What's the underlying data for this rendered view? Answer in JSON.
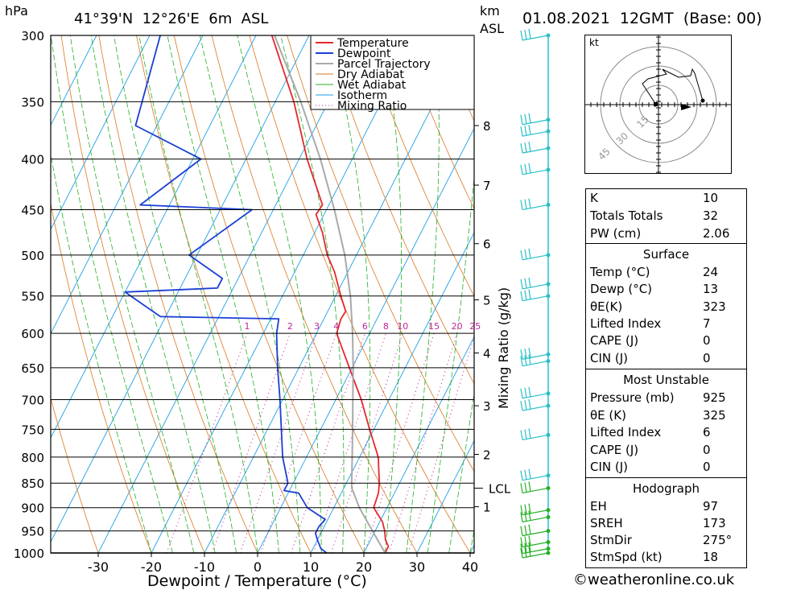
{
  "header": {
    "pressure_unit": "hPa",
    "location": "41°39'N  12°26'E  6m  ASL",
    "height_unit": "km",
    "height_unit2": "ASL",
    "datetime": "01.08.2021  12GMT  (Base: 00)"
  },
  "chart_data": {
    "type": "skew-t",
    "xlabel": "Dewpoint / Temperature (°C)",
    "ylabel_right": "Mixing Ratio (g/kg)",
    "pressure_levels": [
      300,
      350,
      400,
      450,
      500,
      550,
      600,
      650,
      700,
      750,
      800,
      850,
      900,
      950,
      1000
    ],
    "temperature_ticks": [
      -30,
      -20,
      -10,
      0,
      10,
      20,
      30,
      40
    ],
    "height_ticks_km": [
      {
        "km": 1,
        "p": 898
      },
      {
        "km": 2,
        "p": 795
      },
      {
        "km": 3,
        "p": 710
      },
      {
        "km": 4,
        "p": 628
      },
      {
        "km": 5,
        "p": 555
      },
      {
        "km": 6,
        "p": 487
      },
      {
        "km": 7,
        "p": 425
      },
      {
        "km": 8,
        "p": 370
      }
    ],
    "lcl_label": "LCL",
    "lcl_pressure": 860,
    "mixing_ratio_labels": [
      "1",
      "2",
      "3",
      "4",
      "6",
      "8",
      "10",
      "15",
      "20",
      "25"
    ],
    "legend": [
      "Temperature",
      "Dewpoint",
      "Parcel Trajectory",
      "Dry Adiabat",
      "Wet Adiabat",
      "Isotherm",
      "Mixing Ratio"
    ],
    "series": [
      {
        "name": "Temperature",
        "color": "#e8262d",
        "points": [
          [
            1000,
            24.0
          ],
          [
            985,
            24.0
          ],
          [
            970,
            22.8
          ],
          [
            950,
            21.8
          ],
          [
            930,
            20.5
          ],
          [
            900,
            17.5
          ],
          [
            870,
            17.0
          ],
          [
            850,
            16.2
          ],
          [
            800,
            13.5
          ],
          [
            750,
            9.2
          ],
          [
            700,
            4.8
          ],
          [
            650,
            -0.5
          ],
          [
            600,
            -6.2
          ],
          [
            580,
            -6.8
          ],
          [
            570,
            -6.6
          ],
          [
            550,
            -9.0
          ],
          [
            520,
            -12.5
          ],
          [
            500,
            -15.5
          ],
          [
            475,
            -18.5
          ],
          [
            455,
            -21.5
          ],
          [
            445,
            -21.2
          ],
          [
            400,
            -28.5
          ],
          [
            350,
            -36.5
          ],
          [
            300,
            -47.0
          ]
        ]
      },
      {
        "name": "Dewpoint",
        "color": "#1b3fd6",
        "points": [
          [
            1000,
            13.0
          ],
          [
            990,
            11.5
          ],
          [
            970,
            10.0
          ],
          [
            955,
            9.0
          ],
          [
            940,
            9.0
          ],
          [
            925,
            9.5
          ],
          [
            900,
            5.0
          ],
          [
            880,
            3.0
          ],
          [
            870,
            2.0
          ],
          [
            865,
            -1.0
          ],
          [
            855,
            -1.0
          ],
          [
            850,
            -1.0
          ],
          [
            800,
            -4.5
          ],
          [
            700,
            -10.5
          ],
          [
            650,
            -14.0
          ],
          [
            600,
            -17.5
          ],
          [
            580,
            -18.5
          ],
          [
            577,
            -41.0
          ],
          [
            545,
            -50.0
          ],
          [
            540,
            -33.0
          ],
          [
            528,
            -33.0
          ],
          [
            500,
            -41.5
          ],
          [
            450,
            -34.0
          ],
          [
            445,
            -55.5
          ],
          [
            400,
            -48.5
          ],
          [
            370,
            -64.0
          ],
          [
            300,
            -68.0
          ]
        ]
      },
      {
        "name": "Parcel Trajectory",
        "color": "#a9a9a9",
        "points": [
          [
            1000,
            24.0
          ],
          [
            950,
            19.5
          ],
          [
            900,
            14.8
          ],
          [
            860,
            11.5
          ],
          [
            850,
            11.0
          ],
          [
            800,
            8.6
          ],
          [
            750,
            6.0
          ],
          [
            700,
            3.2
          ],
          [
            650,
            0.2
          ],
          [
            600,
            -3.2
          ],
          [
            550,
            -7.2
          ],
          [
            500,
            -12.2
          ],
          [
            450,
            -18.5
          ],
          [
            400,
            -26.0
          ],
          [
            350,
            -35.2
          ],
          [
            300,
            -46.5
          ]
        ]
      }
    ],
    "mixing_ratio_values": [
      1,
      2,
      3,
      4,
      6,
      8,
      10,
      15,
      20,
      25
    ],
    "wind_levels_hpa": [
      300,
      365,
      375,
      390,
      410,
      445,
      500,
      535,
      550,
      630,
      640,
      690,
      710,
      760,
      835,
      860,
      905,
      920,
      950,
      975,
      990,
      1000
    ]
  },
  "hodograph": {
    "unit": "kt",
    "ring_labels": [
      "15",
      "30",
      "45"
    ],
    "ring_values": [
      15,
      30,
      45
    ]
  },
  "indices": {
    "general": [
      {
        "label": "K",
        "value": "10"
      },
      {
        "label": "Totals Totals",
        "value": "32"
      },
      {
        "label": "PW (cm)",
        "value": "2.06"
      }
    ],
    "surface_title": "Surface",
    "surface": [
      {
        "label": "Temp (°C)",
        "value": "24"
      },
      {
        "label": "Dewp (°C)",
        "value": "13"
      },
      {
        "label": "θE(K)",
        "value": "323"
      },
      {
        "label": "Lifted Index",
        "value": "7"
      },
      {
        "label": "CAPE (J)",
        "value": "0"
      },
      {
        "label": "CIN (J)",
        "value": "0"
      }
    ],
    "unstable_title": "Most Unstable",
    "unstable": [
      {
        "label": "Pressure (mb)",
        "value": "925"
      },
      {
        "label": "θE (K)",
        "value": "325"
      },
      {
        "label": "Lifted Index",
        "value": "6"
      },
      {
        "label": "CAPE (J)",
        "value": "0"
      },
      {
        "label": "CIN (J)",
        "value": "0"
      }
    ],
    "hodograph_title": "Hodograph",
    "hodograph": [
      {
        "label": "EH",
        "value": "97"
      },
      {
        "label": "SREH",
        "value": "173"
      },
      {
        "label": "StmDir",
        "value": "275°"
      },
      {
        "label": "StmSpd (kt)",
        "value": "18"
      }
    ]
  },
  "footer": {
    "copyright": "©weatheronline.co.uk"
  },
  "colors": {
    "temperature": "#e8262d",
    "dewpoint": "#1b3fd6",
    "parcel": "#a9a9a9",
    "dry_adiabat": "#d9781e",
    "wet_adiabat": "#22b022",
    "isotherm": "#1ea0e6",
    "mixing_ratio": "#c0269a",
    "wind": "#26c0c8",
    "wind_low": "#22b022"
  }
}
